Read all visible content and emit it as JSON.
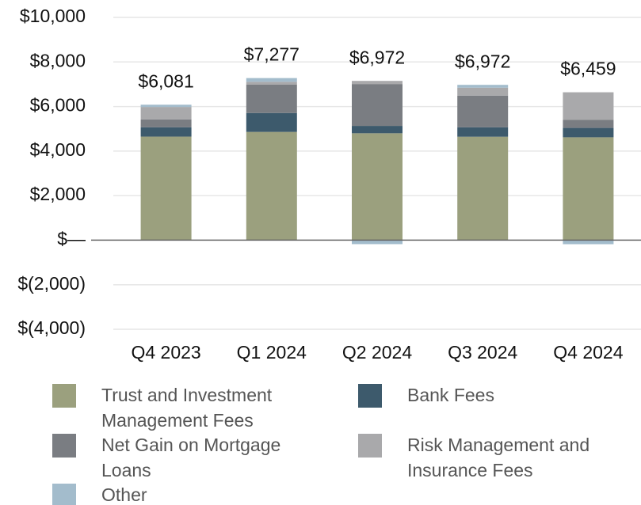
{
  "chart_data": {
    "type": "stacked_bar",
    "categories": [
      "Q4 2023",
      "Q1 2024",
      "Q2 2024",
      "Q3 2024",
      "Q4 2024"
    ],
    "series": [
      {
        "name": "Trust and Investment Management Fees",
        "color": "#9ba07e",
        "values": [
          4650,
          4860,
          4800,
          4645,
          4620
        ]
      },
      {
        "name": "Bank Fees",
        "color": "#3d5a6c",
        "values": [
          420,
          850,
          330,
          425,
          420
        ]
      },
      {
        "name": "Net Gain on Mortgage Loans",
        "color": "#7a7d82",
        "values": [
          350,
          1280,
          1880,
          1420,
          360
        ]
      },
      {
        "name": "Risk Management and Insurance Fees",
        "color": "#a9a9ab",
        "values": [
          560,
          120,
          140,
          355,
          1240
        ]
      },
      {
        "name": "Other",
        "color": "#a3bccc",
        "values": [
          101,
          167,
          -178,
          127,
          -181
        ]
      }
    ],
    "totals": [
      6081,
      7277,
      6972,
      6972,
      6459
    ],
    "total_labels": [
      "$6,081",
      "$7,277",
      "$6,972",
      "$6,972",
      "$6,459"
    ],
    "ylim": [
      -4000,
      10000
    ],
    "yticks": [
      {
        "value": -4000,
        "label": "$(4,000)"
      },
      {
        "value": -2000,
        "label": "$(2,000)"
      },
      {
        "value": 0,
        "label": "$—"
      },
      {
        "value": 2000,
        "label": "$2,000"
      },
      {
        "value": 4000,
        "label": "$4,000"
      },
      {
        "value": 6000,
        "label": "$6,000"
      },
      {
        "value": 8000,
        "label": "$8,000"
      },
      {
        "value": 10000,
        "label": "$10,000"
      }
    ],
    "grid": true
  }
}
